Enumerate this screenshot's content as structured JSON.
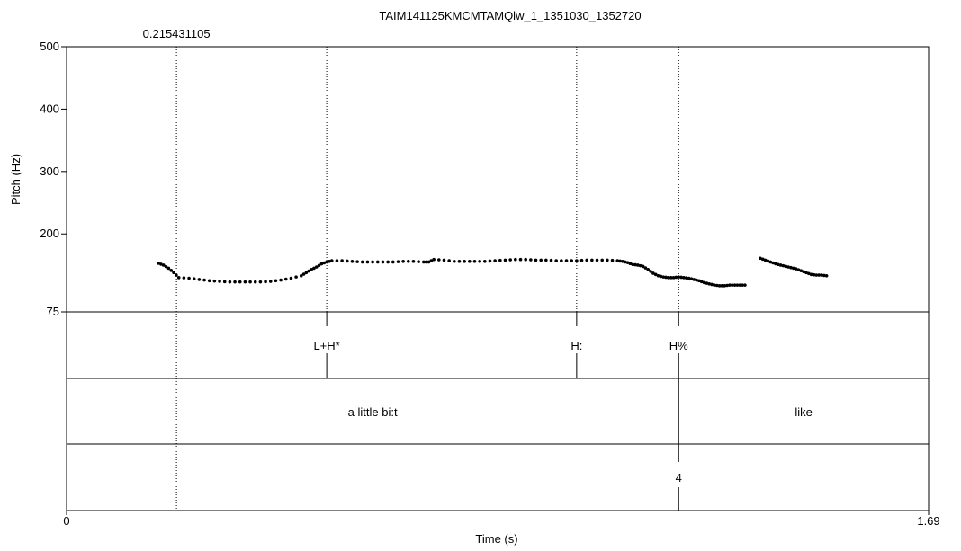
{
  "chart_data": {
    "type": "scatter",
    "title": "TAIM141125KMCMTAMQlw_1_1351030_1352720",
    "xlabel": "Time (s)",
    "ylabel": "Pitch (Hz)",
    "xlim": [
      0,
      1.69
    ],
    "ylim": [
      75,
      500
    ],
    "x_ticks": [
      "0",
      "1.69"
    ],
    "y_ticks": [
      "75",
      "200",
      "300",
      "400",
      "500"
    ],
    "grid": false,
    "cursor": {
      "time": 0.215431105,
      "label": "0.215431105"
    },
    "series": [
      {
        "points": [
          [
            0.18,
            153
          ],
          [
            0.19,
            150
          ],
          [
            0.2,
            145
          ],
          [
            0.21,
            138
          ],
          [
            0.22,
            130
          ],
          [
            0.24,
            129
          ],
          [
            0.26,
            127
          ],
          [
            0.28,
            125
          ],
          [
            0.3,
            124
          ],
          [
            0.32,
            123
          ],
          [
            0.34,
            123
          ],
          [
            0.36,
            123
          ],
          [
            0.38,
            123
          ],
          [
            0.4,
            124
          ],
          [
            0.42,
            126
          ],
          [
            0.44,
            129
          ],
          [
            0.46,
            133
          ],
          [
            0.47,
            138
          ],
          [
            0.48,
            143
          ],
          [
            0.49,
            147
          ],
          [
            0.5,
            152
          ],
          [
            0.51,
            155
          ],
          [
            0.52,
            157
          ],
          [
            0.54,
            157
          ],
          [
            0.56,
            156
          ],
          [
            0.58,
            155
          ],
          [
            0.6,
            155
          ],
          [
            0.62,
            155
          ],
          [
            0.64,
            155
          ],
          [
            0.66,
            156
          ],
          [
            0.68,
            156
          ],
          [
            0.7,
            155
          ],
          [
            0.71,
            155
          ],
          [
            0.72,
            159
          ],
          [
            0.74,
            158
          ],
          [
            0.76,
            156
          ],
          [
            0.78,
            156
          ],
          [
            0.8,
            156
          ],
          [
            0.82,
            156
          ],
          [
            0.84,
            157
          ],
          [
            0.86,
            158
          ],
          [
            0.88,
            159
          ],
          [
            0.9,
            159
          ],
          [
            0.92,
            158
          ],
          [
            0.94,
            158
          ],
          [
            0.96,
            157
          ],
          [
            0.98,
            157
          ],
          [
            1.0,
            157
          ],
          [
            1.02,
            158
          ],
          [
            1.04,
            158
          ],
          [
            1.06,
            158
          ],
          [
            1.08,
            157
          ],
          [
            1.09,
            156
          ],
          [
            1.1,
            154
          ],
          [
            1.11,
            151
          ],
          [
            1.12,
            150
          ],
          [
            1.13,
            148
          ],
          [
            1.14,
            143
          ],
          [
            1.15,
            137
          ],
          [
            1.16,
            133
          ],
          [
            1.17,
            131
          ],
          [
            1.18,
            130
          ],
          [
            1.19,
            130
          ],
          [
            1.2,
            131
          ],
          [
            1.21,
            130
          ],
          [
            1.22,
            129
          ],
          [
            1.23,
            127
          ],
          [
            1.24,
            125
          ],
          [
            1.25,
            122
          ],
          [
            1.26,
            120
          ],
          [
            1.27,
            118
          ],
          [
            1.28,
            117
          ],
          [
            1.29,
            117
          ],
          [
            1.3,
            118
          ],
          [
            1.31,
            118
          ],
          [
            1.32,
            118
          ],
          [
            1.33,
            118
          ]
        ]
      },
      {
        "points": [
          [
            1.36,
            161
          ],
          [
            1.37,
            158
          ],
          [
            1.38,
            155
          ],
          [
            1.39,
            152
          ],
          [
            1.4,
            150
          ],
          [
            1.41,
            148
          ],
          [
            1.42,
            146
          ],
          [
            1.43,
            144
          ],
          [
            1.44,
            141
          ],
          [
            1.45,
            138
          ],
          [
            1.46,
            135
          ],
          [
            1.47,
            134
          ],
          [
            1.48,
            134
          ],
          [
            1.49,
            133
          ]
        ]
      }
    ],
    "tiers": [
      {
        "type": "point",
        "marks": [
          {
            "time": 0.51,
            "label": "L+H*"
          },
          {
            "time": 1.0,
            "label": "H:"
          },
          {
            "time": 1.2,
            "label": "H%"
          }
        ]
      },
      {
        "type": "interval",
        "boundaries": [
          1.2
        ],
        "intervals": [
          {
            "start": 0.0,
            "end": 1.2,
            "label": "a little bi:t"
          },
          {
            "start": 1.2,
            "end": 1.69,
            "label": "like"
          }
        ]
      },
      {
        "type": "point",
        "marks": [
          {
            "time": 1.2,
            "label": "4"
          }
        ]
      }
    ]
  }
}
